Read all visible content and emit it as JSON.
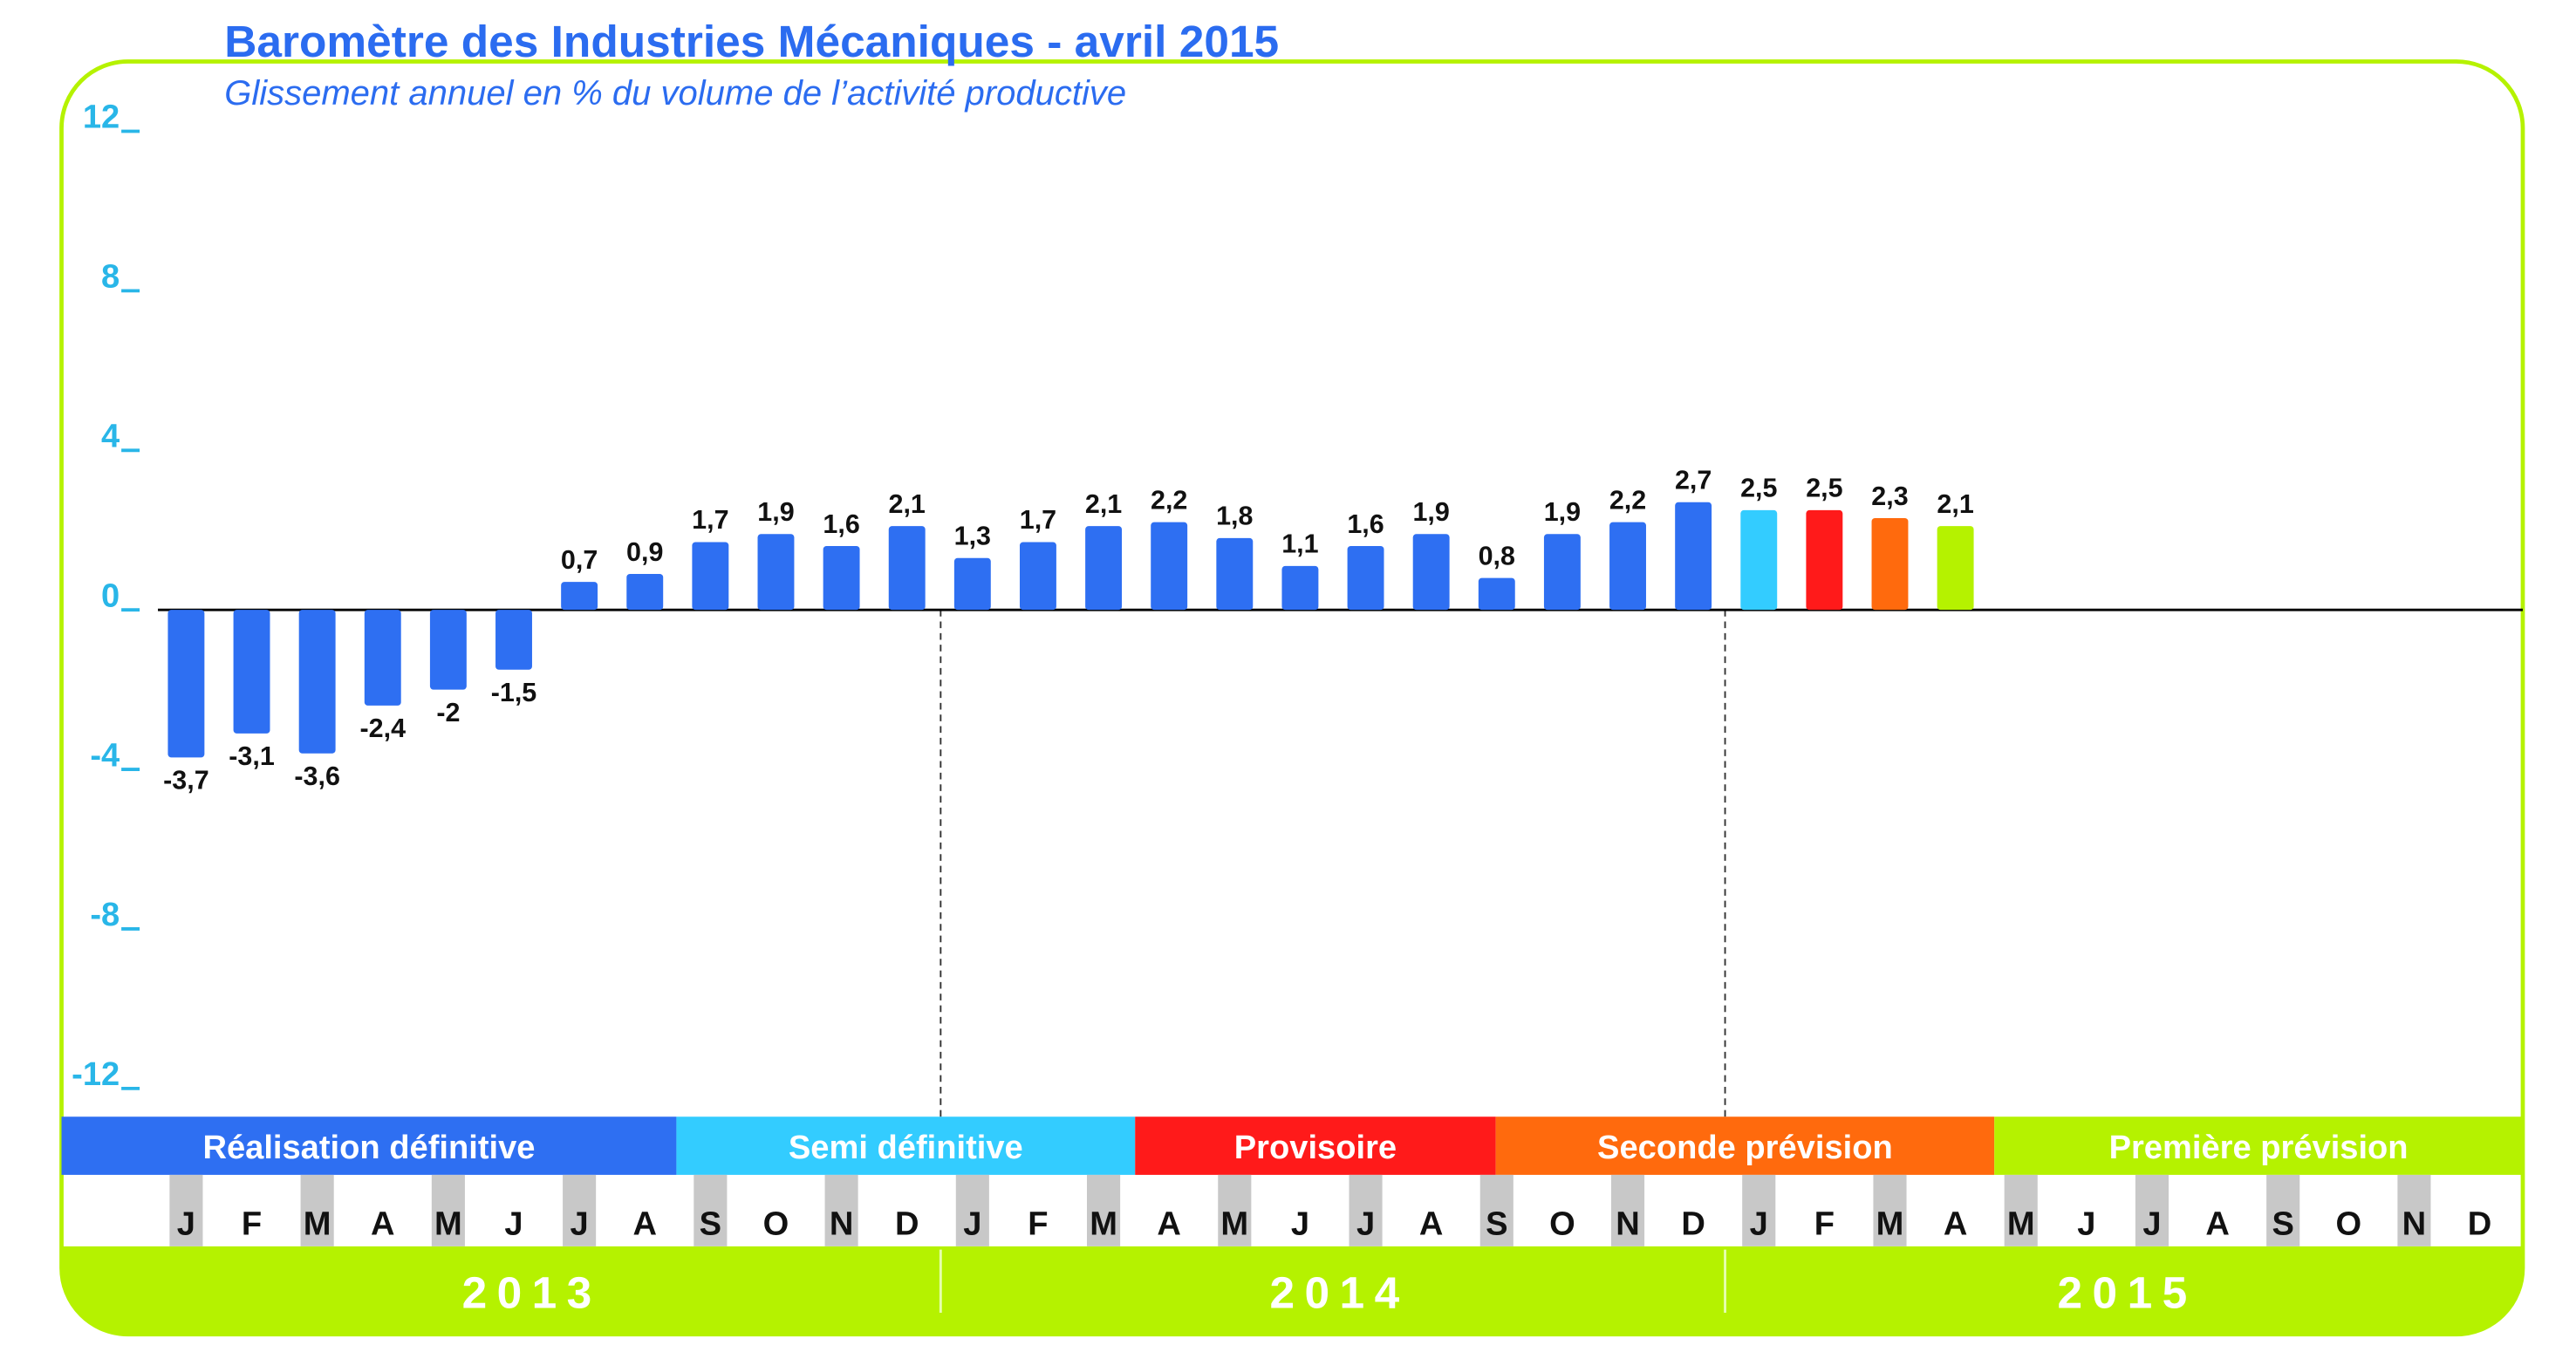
{
  "chart_data": {
    "type": "bar",
    "title": "Baromètre des Industries Mécaniques - avril 2015",
    "subtitle": "Glissement annuel en % du volume de l’activité productive",
    "categories": [
      "J",
      "F",
      "M",
      "A",
      "M",
      "J",
      "J",
      "A",
      "S",
      "O",
      "N",
      "D",
      "J",
      "F",
      "M",
      "A",
      "M",
      "J",
      "J",
      "A",
      "S",
      "O",
      "N",
      "D",
      "J",
      "F",
      "M",
      "A",
      "M",
      "J",
      "J",
      "A",
      "S",
      "O",
      "N",
      "D"
    ],
    "years": [
      "2013",
      "2014",
      "2015"
    ],
    "values": [
      -3.7,
      -3.1,
      -3.6,
      -2.4,
      -2,
      -1.5,
      0.7,
      0.9,
      1.7,
      1.9,
      1.6,
      2.1,
      1.3,
      1.7,
      2.1,
      2.2,
      1.8,
      1.1,
      1.6,
      1.9,
      0.8,
      1.9,
      2.2,
      2.7,
      2.5,
      2.5,
      2.3,
      2.1,
      null,
      null,
      null,
      null,
      null,
      null,
      null,
      null
    ],
    "value_labels": [
      "-3,7",
      "-3,1",
      "-3,6",
      "-2,4",
      "-2",
      "-1,5",
      "0,7",
      "0,9",
      "1,7",
      "1,9",
      "1,6",
      "2,1",
      "1,3",
      "1,7",
      "2,1",
      "2,2",
      "1,8",
      "1,1",
      "1,6",
      "1,9",
      "0,8",
      "1,9",
      "2,2",
      "2,7",
      "2,5",
      "2,5",
      "2,3",
      "2,1",
      null,
      null,
      null,
      null,
      null,
      null,
      null,
      null
    ],
    "colors": [
      "#2e6ff2",
      "#2e6ff2",
      "#2e6ff2",
      "#2e6ff2",
      "#2e6ff2",
      "#2e6ff2",
      "#2e6ff2",
      "#2e6ff2",
      "#2e6ff2",
      "#2e6ff2",
      "#2e6ff2",
      "#2e6ff2",
      "#2e6ff2",
      "#2e6ff2",
      "#2e6ff2",
      "#2e6ff2",
      "#2e6ff2",
      "#2e6ff2",
      "#2e6ff2",
      "#2e6ff2",
      "#2e6ff2",
      "#2e6ff2",
      "#2e6ff2",
      "#2e6ff2",
      "#33ccff",
      "#ff1a1a",
      "#ff6a0d",
      "#b5f200",
      null,
      null,
      null,
      null,
      null,
      null,
      null,
      null
    ],
    "phases": [
      {
        "name": "Réalisation définitive",
        "color": "#2e6ff2"
      },
      {
        "name": "Semi définitive",
        "color": "#33ccff"
      },
      {
        "name": "Provisoire",
        "color": "#ff1a1a"
      },
      {
        "name": "Seconde prévision",
        "color": "#ff6a0d"
      },
      {
        "name": "Première prévision",
        "color": "#b5f200"
      }
    ],
    "ylim": [
      -12,
      12
    ],
    "yticks": [
      -12,
      -8,
      -4,
      0,
      4,
      8,
      12
    ]
  }
}
